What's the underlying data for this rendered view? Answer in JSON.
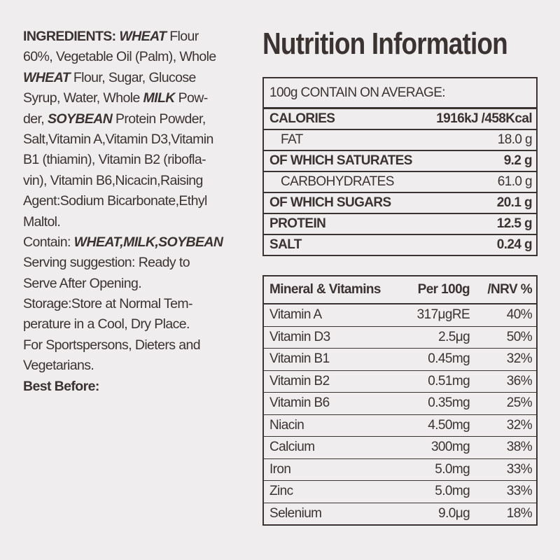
{
  "ingredients": {
    "lines": [
      [
        "INGREDIENTS: ",
        "WHEAT",
        " Flour"
      ],
      [
        "60%, Vegetable Oil (Palm), Whole"
      ],
      [
        "WHEAT",
        " Flour, Sugar, Glucose"
      ],
      [
        "Syrup, Water, Whole ",
        "MILK",
        " Pow-"
      ],
      [
        "der, ",
        "SOYBEAN",
        " Protein Powder,"
      ],
      [
        "Salt,Vitamin A,Vitamin D3,Vitamin"
      ],
      [
        "B1 (thiamin), Vitamin B2 (ribofla-"
      ],
      [
        "vin), Vitamin B6,Nicacin,Raising"
      ],
      [
        "Agent:Sodium Bicarbonate,Ethyl"
      ],
      [
        "Maltol."
      ],
      [
        "Contain: ",
        "WHEAT,MILK,SOYBEAN"
      ],
      [
        "Serving suggestion: Ready to"
      ],
      [
        "Serve After Opening."
      ],
      [
        "Storage:Store at Normal Tem-"
      ],
      [
        "perature in a Cool, Dry Place."
      ],
      [
        "For Sportspersons, Dieters and"
      ],
      [
        "Vegetarians."
      ],
      [
        "Best Before:"
      ]
    ]
  },
  "nutrition": {
    "title": "Nutrition Information",
    "header": "100g CONTAIN ON AVERAGE:",
    "rows": [
      [
        "CALORIES",
        "1916kJ /458Kcal"
      ],
      [
        "FAT",
        "18.0 g"
      ],
      [
        "OF WHICH SATURATES",
        "9.2 g"
      ],
      [
        "CARBOHYDRATES",
        "61.0 g"
      ],
      [
        "OF WHICH SUGARS",
        "20.1 g"
      ],
      [
        "PROTEIN",
        "12.5 g"
      ],
      [
        "SALT",
        "0.24 g"
      ]
    ]
  },
  "vitamins": {
    "header": [
      "Mineral & Vitamins",
      "Per 100g",
      "/NRV %"
    ],
    "rows": [
      [
        "Vitamin A",
        "317μgRE",
        "40%"
      ],
      [
        "Vitamin D3",
        "2.5μg",
        "50%"
      ],
      [
        "Vitamin B1",
        "0.45mg",
        "32%"
      ],
      [
        "Vitamin B2",
        "0.51mg",
        "36%"
      ],
      [
        "Vitamin B6",
        "0.35mg",
        "25%"
      ],
      [
        "Niacin",
        "4.50mg",
        "32%"
      ],
      [
        "Calcium",
        "300mg",
        "38%"
      ],
      [
        "Iron",
        "5.0mg",
        "33%"
      ],
      [
        "Zinc",
        "5.0mg",
        "33%"
      ],
      [
        "Selenium",
        "9.0μg",
        "18%"
      ]
    ]
  }
}
